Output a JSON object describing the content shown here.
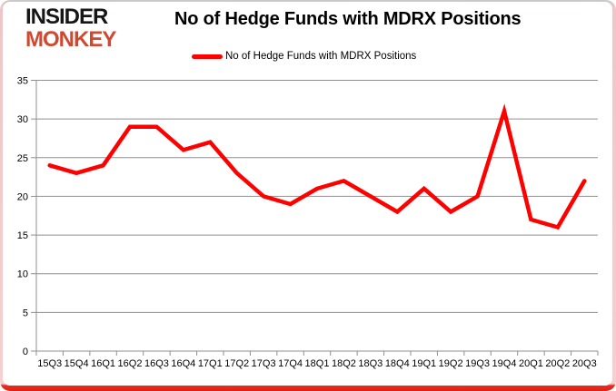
{
  "logo": {
    "line1": "INSIDER",
    "line2": "MONKEY",
    "line1_color": "#161616",
    "line2_color": "#d0482f"
  },
  "title": "No of Hedge Funds with MDRX Positions",
  "legend": {
    "label": "No of Hedge Funds with MDRX Positions",
    "swatch_color": "#fe0000"
  },
  "chart_data": {
    "type": "line",
    "title": "No of Hedge Funds with MDRX Positions",
    "categories": [
      "15Q3",
      "15Q4",
      "16Q1",
      "16Q2",
      "16Q3",
      "16Q4",
      "17Q1",
      "17Q2",
      "17Q3",
      "17Q4",
      "18Q1",
      "18Q2",
      "18Q3",
      "18Q4",
      "19Q1",
      "19Q2",
      "19Q3",
      "19Q4",
      "20Q1",
      "20Q2",
      "20Q3"
    ],
    "series": [
      {
        "name": "No of Hedge Funds with MDRX Positions",
        "color": "#fe0000",
        "values": [
          24,
          23,
          24,
          29,
          29,
          26,
          27,
          23,
          20,
          19,
          21,
          22,
          20,
          18,
          21,
          18,
          20,
          31,
          17,
          16,
          22
        ]
      }
    ],
    "xlabel": "",
    "ylabel": "",
    "ylim": [
      0,
      35
    ],
    "yticks": [
      0,
      5,
      10,
      15,
      20,
      25,
      30,
      35
    ],
    "grid": true,
    "gridline_color": "#8f8f8f",
    "axis_color": "#8f8f8f",
    "tick_label_color": "#000000",
    "legend_position": "top-center",
    "line_width": 4.5
  },
  "frame": {
    "top_border_color": "#c9c9c9",
    "side_border_color": "#f6cfcf",
    "bottom_border_color": "#e82c1e"
  }
}
